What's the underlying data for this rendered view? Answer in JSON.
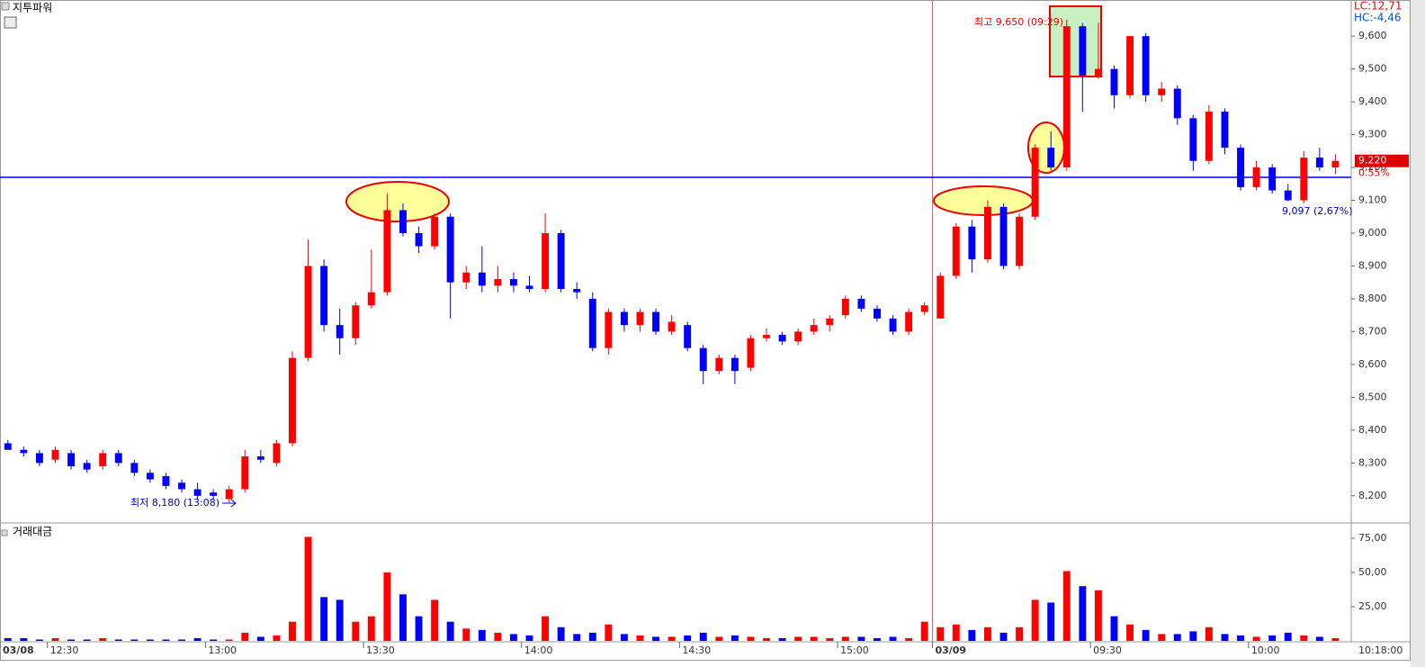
{
  "chart_data": {
    "type": "candlestick",
    "title": "지투파워",
    "volume_title": "거래대금",
    "up_color": "#ff0000",
    "down_color": "#0000ff",
    "ohlc": [
      [
        8360,
        8370,
        8340,
        8340
      ],
      [
        8340,
        8350,
        8320,
        8330
      ],
      [
        8330,
        8340,
        8290,
        8300
      ],
      [
        8310,
        8350,
        8300,
        8340
      ],
      [
        8330,
        8340,
        8280,
        8290
      ],
      [
        8300,
        8310,
        8270,
        8280
      ],
      [
        8290,
        8340,
        8280,
        8330
      ],
      [
        8330,
        8340,
        8290,
        8300
      ],
      [
        8300,
        8310,
        8260,
        8270
      ],
      [
        8270,
        8280,
        8240,
        8250
      ],
      [
        8260,
        8270,
        8220,
        8230
      ],
      [
        8240,
        8250,
        8210,
        8220
      ],
      [
        8220,
        8240,
        8190,
        8200
      ],
      [
        8210,
        8220,
        8190,
        8200
      ],
      [
        8190,
        8230,
        8180,
        8220
      ],
      [
        8220,
        8340,
        8210,
        8320
      ],
      [
        8320,
        8340,
        8300,
        8310
      ],
      [
        8300,
        8370,
        8290,
        8360
      ],
      [
        8360,
        8640,
        8350,
        8620
      ],
      [
        8620,
        8980,
        8610,
        8900
      ],
      [
        8900,
        8920,
        8700,
        8720
      ],
      [
        8720,
        8770,
        8630,
        8680
      ],
      [
        8680,
        8790,
        8660,
        8780
      ],
      [
        8780,
        8950,
        8770,
        8820
      ],
      [
        8820,
        9120,
        8810,
        9070
      ],
      [
        9070,
        9090,
        8990,
        9000
      ],
      [
        9000,
        9020,
        8940,
        8960
      ],
      [
        8960,
        9060,
        8950,
        9050
      ],
      [
        9050,
        9060,
        8740,
        8850
      ],
      [
        8850,
        8900,
        8830,
        8880
      ],
      [
        8880,
        8960,
        8820,
        8840
      ],
      [
        8840,
        8900,
        8820,
        8860
      ],
      [
        8860,
        8880,
        8820,
        8840
      ],
      [
        8840,
        8870,
        8820,
        8830
      ],
      [
        8830,
        9060,
        8820,
        9000
      ],
      [
        9000,
        9010,
        8820,
        8830
      ],
      [
        8830,
        8850,
        8800,
        8820
      ],
      [
        8800,
        8820,
        8640,
        8650
      ],
      [
        8650,
        8770,
        8630,
        8760
      ],
      [
        8760,
        8770,
        8700,
        8720
      ],
      [
        8720,
        8770,
        8700,
        8760
      ],
      [
        8760,
        8770,
        8690,
        8700
      ],
      [
        8700,
        8750,
        8690,
        8730
      ],
      [
        8720,
        8730,
        8640,
        8650
      ],
      [
        8650,
        8660,
        8540,
        8580
      ],
      [
        8580,
        8630,
        8570,
        8620
      ],
      [
        8620,
        8630,
        8540,
        8580
      ],
      [
        8590,
        8690,
        8580,
        8680
      ],
      [
        8680,
        8710,
        8670,
        8690
      ],
      [
        8690,
        8700,
        8660,
        8670
      ],
      [
        8670,
        8710,
        8660,
        8700
      ],
      [
        8700,
        8740,
        8690,
        8720
      ],
      [
        8720,
        8750,
        8700,
        8740
      ],
      [
        8750,
        8810,
        8740,
        8800
      ],
      [
        8800,
        8810,
        8760,
        8770
      ],
      [
        8770,
        8780,
        8730,
        8740
      ],
      [
        8740,
        8750,
        8690,
        8700
      ],
      [
        8700,
        8770,
        8690,
        8760
      ],
      [
        8760,
        8790,
        8750,
        8780
      ],
      [
        8740,
        8880,
        8740,
        8870
      ],
      [
        8870,
        9030,
        8860,
        9020
      ],
      [
        9020,
        9040,
        8880,
        8920
      ],
      [
        8920,
        9100,
        8910,
        9080
      ],
      [
        9080,
        9090,
        8890,
        8900
      ],
      [
        8900,
        9060,
        8890,
        9050
      ],
      [
        9050,
        9270,
        9040,
        9260
      ],
      [
        9260,
        9310,
        9190,
        9200
      ],
      [
        9200,
        9650,
        9190,
        9630
      ],
      [
        9630,
        9640,
        9370,
        9480
      ],
      [
        9480,
        9640,
        9470,
        9500
      ],
      [
        9500,
        9510,
        9380,
        9420
      ],
      [
        9420,
        9600,
        9410,
        9600
      ],
      [
        9600,
        9610,
        9400,
        9420
      ],
      [
        9420,
        9460,
        9400,
        9440
      ],
      [
        9440,
        9450,
        9330,
        9350
      ],
      [
        9350,
        9360,
        9190,
        9220
      ],
      [
        9220,
        9390,
        9210,
        9370
      ],
      [
        9370,
        9380,
        9240,
        9260
      ],
      [
        9260,
        9270,
        9130,
        9140
      ],
      [
        9140,
        9220,
        9130,
        9200
      ],
      [
        9200,
        9210,
        9120,
        9130
      ],
      [
        9130,
        9150,
        9097,
        9100
      ],
      [
        9100,
        9250,
        9090,
        9230
      ],
      [
        9230,
        9260,
        9190,
        9200
      ],
      [
        9200,
        9240,
        9180,
        9220
      ]
    ],
    "volumes": [
      2,
      2,
      1,
      2,
      1,
      1,
      2,
      1,
      1,
      1,
      1,
      1,
      2,
      1,
      1,
      6,
      3,
      4,
      14,
      76,
      32,
      30,
      14,
      18,
      50,
      34,
      18,
      30,
      14,
      9,
      8,
      6,
      5,
      4,
      18,
      10,
      5,
      6,
      12,
      5,
      4,
      3,
      3,
      4,
      6,
      3,
      4,
      3,
      2,
      2,
      3,
      3,
      2,
      3,
      3,
      2,
      3,
      2,
      14,
      10,
      12,
      8,
      10,
      6,
      10,
      30,
      28,
      51,
      40,
      37,
      18,
      12,
      8,
      5,
      5,
      7,
      10,
      5,
      4,
      3,
      4,
      6,
      4,
      3,
      2
    ],
    "ylim": [
      8120,
      9710
    ],
    "yticks": [
      {
        "value": 8200,
        "label": "8,200"
      },
      {
        "value": 8300,
        "label": "8,300"
      },
      {
        "value": 8400,
        "label": "8,400"
      },
      {
        "value": 8500,
        "label": "8,500"
      },
      {
        "value": 8600,
        "label": "8,600"
      },
      {
        "value": 8700,
        "label": "8,700"
      },
      {
        "value": 8800,
        "label": "8,800"
      },
      {
        "value": 8900,
        "label": "8,900"
      },
      {
        "value": 9000,
        "label": "9,000"
      },
      {
        "value": 9100,
        "label": "9,100"
      },
      {
        "value": 9200,
        "label": "9,200"
      },
      {
        "value": 9300,
        "label": "9,300"
      },
      {
        "value": 9400,
        "label": "9,400"
      },
      {
        "value": 9500,
        "label": "9,500"
      },
      {
        "value": 9600,
        "label": "9,600"
      }
    ],
    "y2lim": [
      0,
      85.5
    ],
    "y2ticks": [
      {
        "value": 25,
        "label": "25,00"
      },
      {
        "value": 50,
        "label": "50,00"
      },
      {
        "value": 75,
        "label": "75,00"
      }
    ],
    "xlim": [
      0,
      85.5
    ],
    "xticks": [
      {
        "value": 0,
        "label": "03/08"
      },
      {
        "value": 3,
        "label": "12:30"
      },
      {
        "value": 13,
        "label": "13:00"
      },
      {
        "value": 23,
        "label": "13:30"
      },
      {
        "value": 33,
        "label": "14:00"
      },
      {
        "value": 43,
        "label": "14:30"
      },
      {
        "value": 53,
        "label": "15:00"
      },
      {
        "value": 59,
        "label": "03/09"
      },
      {
        "value": 69,
        "label": "09:30"
      },
      {
        "value": 79,
        "label": "10:00"
      }
    ],
    "x_end_label": "10:18:00",
    "session_break": 59,
    "hline": 9170,
    "lc_label": "LC:12,71",
    "hc_label": "HC:-4,46",
    "last_price": {
      "value": 9220,
      "label": "9,220"
    },
    "change_label": "0.55%",
    "high_annotation": "최고 9,650 (09:29)",
    "low_annotation": "최저 8,180 (13:08)",
    "low_line_label": "9,097 (2,67%)"
  }
}
